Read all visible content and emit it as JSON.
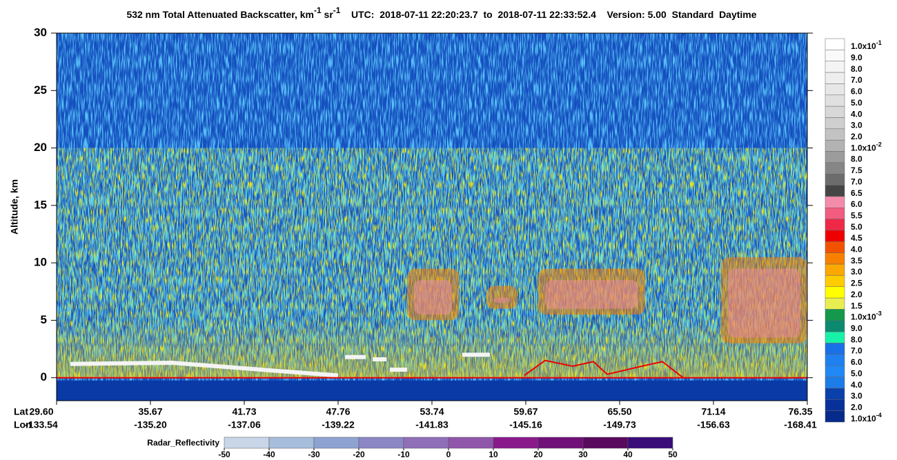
{
  "chart_data": {
    "type": "curtain",
    "title": {
      "main": "532 nm Total Attenuated Backscatter, km",
      "sup1": "-1",
      "mid": " sr",
      "sup2": "-1",
      "rest": "    UTC:  2018-07-11 22:20:23.7  to  2018-07-11 22:33:52.4    Version: 5.00  Standard  Daytime"
    },
    "y_label": "Altitude, km",
    "ylim": [
      -2,
      30
    ],
    "yticks": [
      0,
      5,
      10,
      15,
      20,
      25,
      30
    ],
    "x_labels": {
      "lat_label": "Lat",
      "lon_label": "Lon",
      "lat": [
        "29.60",
        "35.67",
        "41.73",
        "47.76",
        "53.74",
        "59.67",
        "65.50",
        "71.14",
        "76.35"
      ],
      "lon": [
        "-133.54",
        "-135.20",
        "-137.06",
        "-139.22",
        "-141.83",
        "-145.16",
        "-149.73",
        "-156.63",
        "-168.41"
      ]
    },
    "colorbar": [
      {
        "label": "1.0x10",
        "sup": "-1",
        "color": "#ffffff"
      },
      {
        "label": "9.0",
        "color": "#fafafa"
      },
      {
        "label": "8.0",
        "color": "#f4f4f4"
      },
      {
        "label": "7.0",
        "color": "#eeeeee"
      },
      {
        "label": "6.0",
        "color": "#e7e7e7"
      },
      {
        "label": "5.0",
        "color": "#e0e0e0"
      },
      {
        "label": "4.0",
        "color": "#d8d8d8"
      },
      {
        "label": "3.0",
        "color": "#cfcfcf"
      },
      {
        "label": "2.0",
        "color": "#c3c3c3"
      },
      {
        "label": "1.0x10",
        "sup": "-2",
        "color": "#b3b3b3"
      },
      {
        "label": "8.0",
        "color": "#9c9c9c"
      },
      {
        "label": "7.5",
        "color": "#868686"
      },
      {
        "label": "7.0",
        "color": "#6c6c6c"
      },
      {
        "label": "6.5",
        "color": "#454545"
      },
      {
        "label": "6.0",
        "color": "#f48bab"
      },
      {
        "label": "5.5",
        "color": "#f25c7e"
      },
      {
        "label": "5.0",
        "color": "#f02848"
      },
      {
        "label": "4.5",
        "color": "#ee0000"
      },
      {
        "label": "4.0",
        "color": "#f25200"
      },
      {
        "label": "3.5",
        "color": "#f78000"
      },
      {
        "label": "3.0",
        "color": "#fba800"
      },
      {
        "label": "2.5",
        "color": "#ffcc00"
      },
      {
        "label": "2.0",
        "color": "#ffff00"
      },
      {
        "label": "1.5",
        "color": "#e8ee50"
      },
      {
        "label": "1.0x10",
        "sup": "-3",
        "color": "#14994c"
      },
      {
        "label": "9.0",
        "color": "#0b8a70"
      },
      {
        "label": "8.0",
        "color": "#18f2a8"
      },
      {
        "label": "7.0",
        "color": "#1a70e6"
      },
      {
        "label": "6.0",
        "color": "#1f80f0"
      },
      {
        "label": "5.0",
        "color": "#2088f5"
      },
      {
        "label": "4.0",
        "color": "#1c7ce8"
      },
      {
        "label": "3.0",
        "color": "#0a40aa"
      },
      {
        "label": "2.0",
        "color": "#07309a"
      },
      {
        "label": "1.0x10",
        "sup": "-4",
        "color": "#062a8a"
      }
    ],
    "radar": {
      "label": "Radar_Reflectivity",
      "ticks": [
        -50,
        -40,
        -30,
        -20,
        -10,
        0,
        10,
        20,
        30,
        40,
        50
      ],
      "colors": [
        "#c8d6e8",
        "#a6bddc",
        "#8fa3d2",
        "#8b86c4",
        "#8f6fb8",
        "#8f56aa",
        "#8a1a8c",
        "#701078",
        "#5a0a5e",
        "#3a0c7a"
      ]
    }
  }
}
